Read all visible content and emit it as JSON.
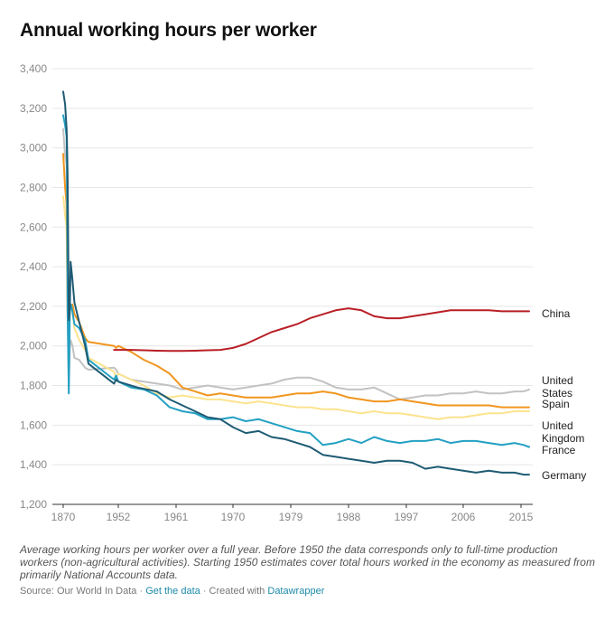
{
  "chart_data": {
    "type": "line",
    "title": "Annual working hours per worker",
    "ylim": [
      1200,
      3400
    ],
    "yticks": [
      1200,
      1400,
      1600,
      1800,
      2000,
      2200,
      2400,
      2600,
      2800,
      3000,
      3200,
      3400
    ],
    "ytick_labels": [
      "1,200",
      "1,400",
      "1,600",
      "1,800",
      "2,000",
      "2,200",
      "2,400",
      "2,600",
      "2,800",
      "3,000",
      "3,200",
      "3,400"
    ],
    "xtick_labels": [
      "1870",
      "1952",
      "1961",
      "1970",
      "1979",
      "1988",
      "1997",
      "2006",
      "2015"
    ],
    "grid": true,
    "series": [
      {
        "name": "Germany",
        "color": "#1e5b73",
        "x": [
          1870,
          1875,
          1879,
          1880,
          1882,
          1885,
          1888,
          1890,
          1895,
          1900,
          1913,
          1929,
          1938,
          1950,
          1951,
          1952,
          1955,
          1958,
          1960,
          1962,
          1964,
          1966,
          1968,
          1970,
          1972,
          1974,
          1976,
          1978,
          1980,
          1982,
          1984,
          1986,
          1988,
          1990,
          1992,
          1994,
          1996,
          1998,
          2000,
          2002,
          2004,
          2006,
          2008,
          2010,
          2012,
          2014,
          2016,
          2018
        ],
        "y": [
          3284,
          3220,
          3100,
          3050,
          2850,
          2130,
          2190,
          2425,
          2330,
          2220,
          2120,
          2000,
          1910,
          1810,
          1830,
          1820,
          1790,
          1770,
          1730,
          1700,
          1670,
          1640,
          1630,
          1590,
          1560,
          1570,
          1540,
          1530,
          1510,
          1490,
          1450,
          1440,
          1430,
          1420,
          1410,
          1420,
          1420,
          1410,
          1380,
          1390,
          1380,
          1370,
          1360,
          1370,
          1360,
          1360,
          1350,
          1350
        ]
      },
      {
        "name": "France",
        "color": "#23a0c3",
        "x": [
          1870,
          1875,
          1879,
          1880,
          1882,
          1885,
          1888,
          1890,
          1892,
          1895,
          1900,
          1913,
          1929,
          1938,
          1950,
          1951,
          1952,
          1954,
          1956,
          1958,
          1960,
          1962,
          1964,
          1966,
          1968,
          1970,
          1972,
          1974,
          1976,
          1978,
          1980,
          1982,
          1984,
          1986,
          1988,
          1990,
          1992,
          1994,
          1996,
          1998,
          2000,
          2002,
          2004,
          2006,
          2008,
          2010,
          2012,
          2014,
          2016,
          2018
        ],
        "y": [
          3165,
          3115,
          3060,
          2940,
          2190,
          1760,
          2200,
          2210,
          2200,
          2170,
          2110,
          2090,
          2030,
          1930,
          1830,
          1850,
          1820,
          1790,
          1780,
          1750,
          1690,
          1670,
          1660,
          1630,
          1630,
          1640,
          1620,
          1630,
          1610,
          1590,
          1570,
          1560,
          1500,
          1510,
          1530,
          1510,
          1540,
          1520,
          1510,
          1520,
          1520,
          1530,
          1510,
          1520,
          1520,
          1510,
          1500,
          1510,
          1500,
          1490
        ]
      },
      {
        "name": "United Kingdom",
        "color": "#fbe38e",
        "x": [
          1870,
          1875,
          1879,
          1880,
          1882,
          1885,
          1888,
          1890,
          1895,
          1900,
          1913,
          1929,
          1938,
          1950,
          1951,
          1952,
          1954,
          1956,
          1958,
          1960,
          1962,
          1964,
          1966,
          1968,
          1970,
          1972,
          1974,
          1976,
          1978,
          1980,
          1982,
          1984,
          1986,
          1988,
          1990,
          1992,
          1994,
          1996,
          1998,
          2000,
          2002,
          2004,
          2006,
          2008,
          2010,
          2012,
          2014,
          2016,
          2018
        ],
        "y": [
          2755,
          2660,
          2600,
          2480,
          2210,
          2050,
          2180,
          2190,
          2180,
          2090,
          2030,
          1980,
          1940,
          1870,
          1840,
          1860,
          1830,
          1800,
          1760,
          1740,
          1750,
          1740,
          1730,
          1730,
          1720,
          1710,
          1720,
          1710,
          1700,
          1690,
          1690,
          1680,
          1680,
          1670,
          1660,
          1670,
          1660,
          1660,
          1650,
          1640,
          1630,
          1640,
          1640,
          1650,
          1660,
          1660,
          1670,
          1670,
          1670
        ]
      },
      {
        "name": "Spain",
        "color": "#f0961f",
        "x": [
          1870,
          1875,
          1879,
          1880,
          1882,
          1885,
          1888,
          1890,
          1895,
          1900,
          1913,
          1929,
          1938,
          1950,
          1951,
          1952,
          1954,
          1956,
          1958,
          1960,
          1962,
          1964,
          1966,
          1968,
          1970,
          1972,
          1974,
          1976,
          1978,
          1980,
          1982,
          1984,
          1986,
          1988,
          1990,
          1992,
          1994,
          1996,
          1998,
          2000,
          2002,
          2004,
          2006,
          2008,
          2010,
          2012,
          2014,
          2016,
          2018
        ],
        "y": [
          2970,
          2800,
          2720,
          2600,
          2150,
          2030,
          2200,
          2200,
          2210,
          2160,
          2120,
          2040,
          2020,
          2000,
          1990,
          2000,
          1970,
          1930,
          1900,
          1860,
          1790,
          1770,
          1750,
          1760,
          1750,
          1740,
          1740,
          1740,
          1750,
          1760,
          1760,
          1770,
          1760,
          1740,
          1730,
          1720,
          1720,
          1730,
          1720,
          1710,
          1700,
          1700,
          1700,
          1700,
          1700,
          1690,
          1690,
          1690,
          1690
        ]
      },
      {
        "name": "United States",
        "color": "#c2c2c2",
        "x": [
          1870,
          1875,
          1879,
          1880,
          1882,
          1885,
          1888,
          1890,
          1895,
          1900,
          1913,
          1929,
          1938,
          1950,
          1951,
          1952,
          1954,
          1956,
          1958,
          1960,
          1962,
          1964,
          1966,
          1968,
          1970,
          1972,
          1974,
          1976,
          1978,
          1980,
          1982,
          1984,
          1986,
          1988,
          1990,
          1992,
          1994,
          1996,
          1998,
          2000,
          2002,
          2004,
          2006,
          2008,
          2010,
          2012,
          2014,
          2016,
          2018
        ],
        "y": [
          3095,
          2960,
          2920,
          2620,
          2150,
          1800,
          1990,
          2030,
          2000,
          1940,
          1930,
          1890,
          1880,
          1890,
          1880,
          1860,
          1830,
          1820,
          1810,
          1800,
          1780,
          1790,
          1800,
          1790,
          1780,
          1790,
          1800,
          1810,
          1830,
          1840,
          1840,
          1820,
          1790,
          1780,
          1780,
          1790,
          1760,
          1730,
          1740,
          1750,
          1750,
          1760,
          1760,
          1770,
          1760,
          1760,
          1770,
          1770,
          1780
        ]
      },
      {
        "name": "China",
        "color": "#b81f25",
        "x": [
          1950,
          1951,
          1952,
          1954,
          1956,
          1958,
          1960,
          1962,
          1964,
          1966,
          1968,
          1970,
          1972,
          1974,
          1976,
          1978,
          1980,
          1982,
          1984,
          1986,
          1988,
          1990,
          1992,
          1994,
          1996,
          1998,
          2000,
          2002,
          2004,
          2006,
          2008,
          2010,
          2012,
          2014,
          2016,
          2018
        ],
        "y": [
          1980,
          1980,
          1980,
          1980,
          1978,
          1976,
          1975,
          1975,
          1976,
          1978,
          1980,
          1990,
          2010,
          2040,
          2070,
          2090,
          2110,
          2140,
          2160,
          2180,
          2190,
          2180,
          2150,
          2140,
          2140,
          2150,
          2160,
          2170,
          2180,
          2180,
          2180,
          2180,
          2175,
          2175,
          2175,
          2175
        ]
      }
    ],
    "notes": "Average working hours per worker over a full year. Before 1950 the data corresponds only to full-time production workers (non-agricultural activities). Starting 1950 estimates cover total hours worked in the economy as measured from primarily National Accounts data."
  },
  "footer": {
    "source": "Source: Our World In Data",
    "sep1": "·",
    "get_data": "Get the data",
    "sep2": "·",
    "created_prefix": "Created with",
    "datawrapper": "Datawrapper"
  }
}
